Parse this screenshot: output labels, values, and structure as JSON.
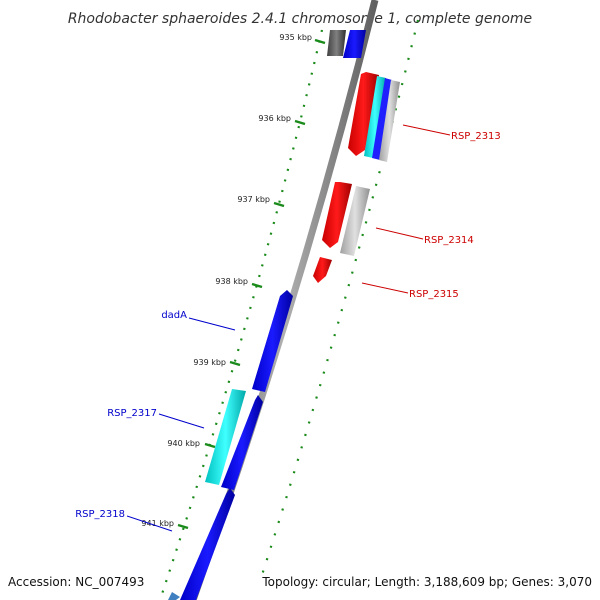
{
  "title": "Rhodobacter sphaeroides 2.4.1 chromosome 1, complete genome",
  "footer": {
    "accession": "Accession: NC_007493",
    "topology": "Topology: circular; Length: 3,188,609 bp; Genes: 3,070"
  },
  "ticks": [
    "935 kbp",
    "936 kbp",
    "937 kbp",
    "938 kbp",
    "939 kbp",
    "940 kbp",
    "941 kbp"
  ],
  "gene_labels": {
    "rsp2313": "RSP_2313",
    "rsp2314": "RSP_2314",
    "rsp2315": "RSP_2315",
    "dada": "dadA",
    "rsp2317": "RSP_2317",
    "rsp2318": "RSP_2318"
  },
  "colors": {
    "backbone": "#808080",
    "forward_gene": "#0000ee",
    "reverse_gene": "#ee0000",
    "cyan_gene": "#00e0e0",
    "grey_gene": "#b0b0b0",
    "dark_grey_gene": "#505050",
    "tick_marks": "#1a8a1a",
    "label_red": "#cc0000",
    "label_blue": "#0000cc"
  }
}
